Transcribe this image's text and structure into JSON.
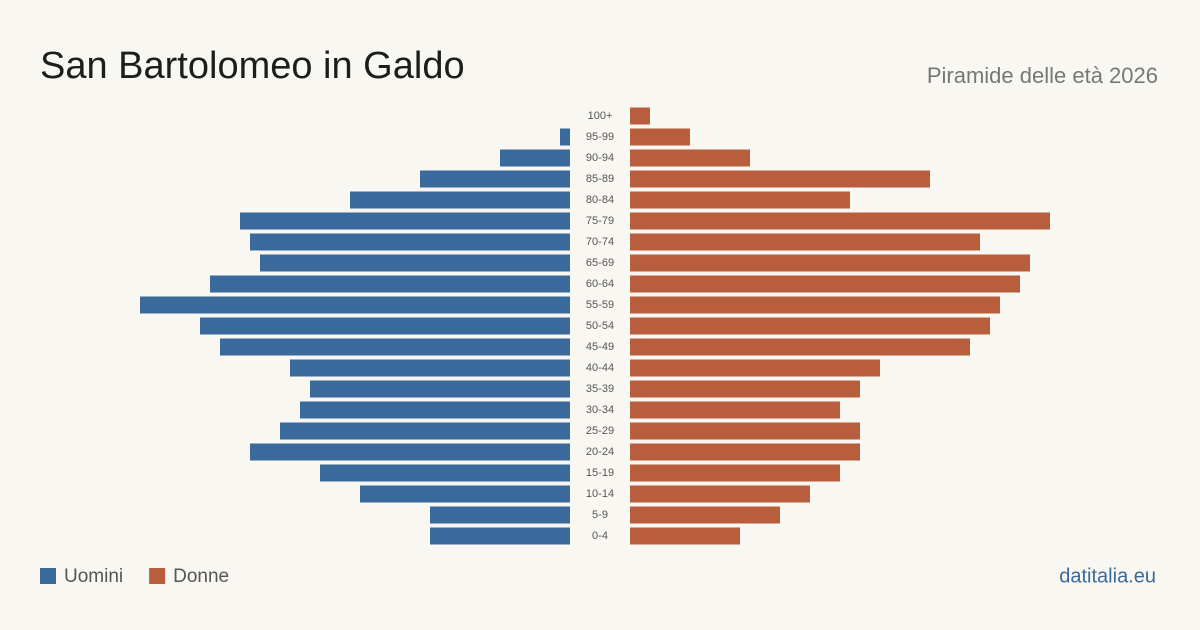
{
  "chart_data": {
    "type": "pyramid",
    "title": "San Bartolomeo in Galdo",
    "subtitle": "Piramide delle età 2026",
    "source": "datitalia.eu",
    "categories": [
      "100+",
      "95-99",
      "90-94",
      "85-89",
      "80-84",
      "75-79",
      "70-74",
      "65-69",
      "60-64",
      "55-59",
      "50-54",
      "45-49",
      "40-44",
      "35-39",
      "30-34",
      "25-29",
      "20-24",
      "15-19",
      "10-14",
      "5-9",
      "0-4"
    ],
    "series": [
      {
        "name": "Uomini",
        "color": "#3a6a9c",
        "values": [
          0,
          1,
          7,
          15,
          22,
          33,
          32,
          31,
          36,
          43,
          37,
          35,
          28,
          26,
          27,
          29,
          32,
          25,
          21,
          14,
          14
        ]
      },
      {
        "name": "Donne",
        "color": "#b95e3d",
        "values": [
          2,
          6,
          12,
          30,
          22,
          42,
          35,
          40,
          39,
          37,
          36,
          34,
          25,
          23,
          21,
          23,
          23,
          21,
          18,
          15,
          11
        ]
      }
    ]
  }
}
